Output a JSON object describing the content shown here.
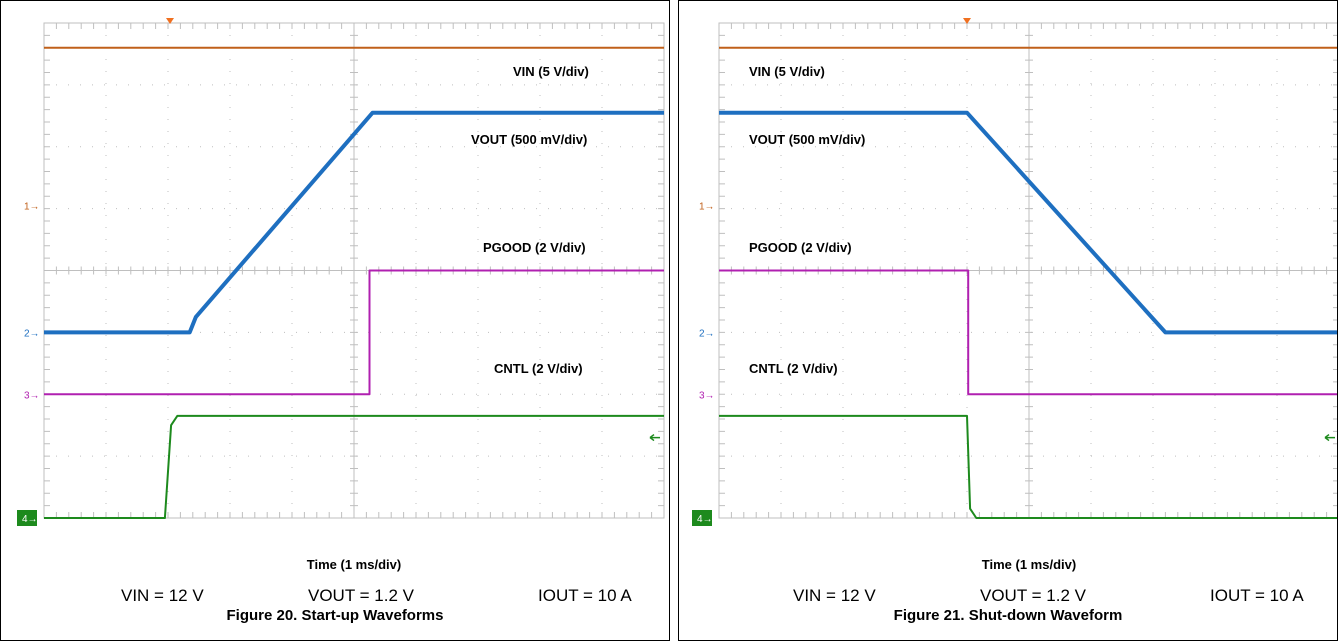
{
  "colors": {
    "vin": "#c0601a",
    "vout": "#1e6fc0",
    "pgood": "#b020b0",
    "cntl": "#1d8a1d",
    "grid": "#bfbfbf",
    "trigger": "#f07020"
  },
  "chart_data": [
    {
      "type": "line",
      "title": "Figure 20. Start-up Waveforms",
      "xlabel": "Time (1 ms/div)",
      "conditions": [
        "VIN = 12 V",
        "VOUT = 1.2 V",
        "IOUT = 10 A"
      ],
      "x_divisions": 10,
      "y_divisions": 8,
      "channel_markers": [
        "1",
        "2",
        "3",
        "4"
      ],
      "series": [
        {
          "name": "VIN (5 V/div)",
          "color_key": "vin",
          "x": [
            0,
            10
          ],
          "y": [
            7.6,
            7.6
          ]
        },
        {
          "name": "VOUT (500 mV/div)",
          "color_key": "vout",
          "x": [
            0,
            2.35,
            2.45,
            5.3,
            10
          ],
          "y": [
            3.0,
            3.0,
            3.25,
            6.55,
            6.55
          ]
        },
        {
          "name": "PGOOD (2 V/div)",
          "color_key": "pgood",
          "x": [
            0,
            5.25,
            5.25,
            10
          ],
          "y": [
            2.0,
            2.0,
            4.0,
            4.0
          ]
        },
        {
          "name": "CNTL (2 V/div)",
          "color_key": "cntl",
          "x": [
            0,
            1.95,
            2.05,
            2.15,
            10
          ],
          "y": [
            0.0,
            0.0,
            1.5,
            1.65,
            1.65
          ]
        }
      ]
    },
    {
      "type": "line",
      "title": "Figure 21. Shut-down Waveform",
      "xlabel": "Time (1 ms/div)",
      "conditions": [
        "VIN = 12 V",
        "VOUT = 1.2 V",
        "IOUT = 10 A"
      ],
      "x_divisions": 10,
      "y_divisions": 8,
      "channel_markers": [
        "1",
        "2",
        "3",
        "4"
      ],
      "series": [
        {
          "name": "VIN (5 V/div)",
          "color_key": "vin",
          "x": [
            0,
            10
          ],
          "y": [
            7.6,
            7.6
          ]
        },
        {
          "name": "VOUT (500 mV/div)",
          "color_key": "vout",
          "x": [
            0,
            4.0,
            7.2,
            10
          ],
          "y": [
            6.55,
            6.55,
            3.0,
            3.0
          ]
        },
        {
          "name": "PGOOD (2 V/div)",
          "color_key": "pgood",
          "x": [
            0,
            4.02,
            4.02,
            10
          ],
          "y": [
            4.0,
            4.0,
            2.0,
            2.0
          ]
        },
        {
          "name": "CNTL (2 V/div)",
          "color_key": "cntl",
          "x": [
            0,
            4.0,
            4.05,
            4.15,
            10
          ],
          "y": [
            1.65,
            1.65,
            0.15,
            0.0,
            0.0
          ]
        }
      ]
    }
  ]
}
